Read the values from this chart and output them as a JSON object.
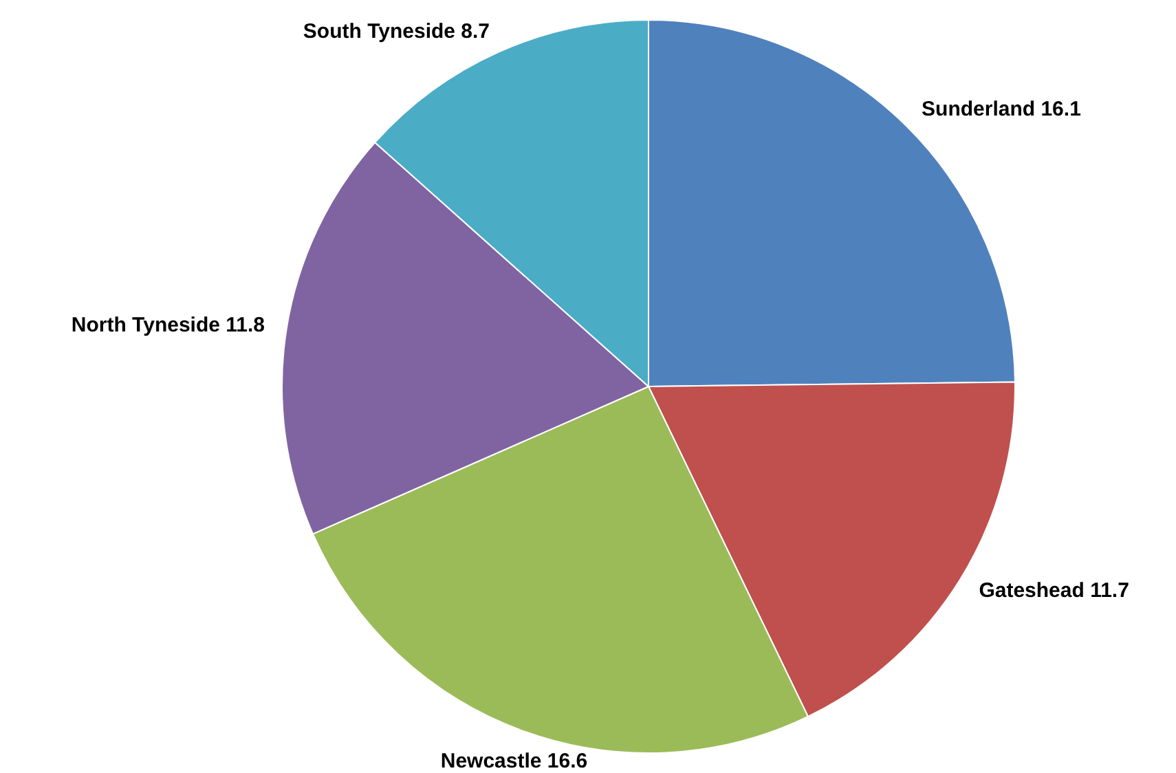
{
  "chart_data": {
    "type": "pie",
    "categories": [
      "Sunderland 16.1",
      "Gateshead 11.7",
      "Newcastle 16.6",
      "North Tyneside 11.8",
      "South Tyneside 8.7"
    ],
    "values": [
      16.1,
      11.7,
      16.6,
      11.8,
      8.7
    ],
    "colors": [
      "#4f81bd",
      "#c0504d",
      "#9bbb59",
      "#8064a2",
      "#4bacc6"
    ],
    "legend": false
  }
}
